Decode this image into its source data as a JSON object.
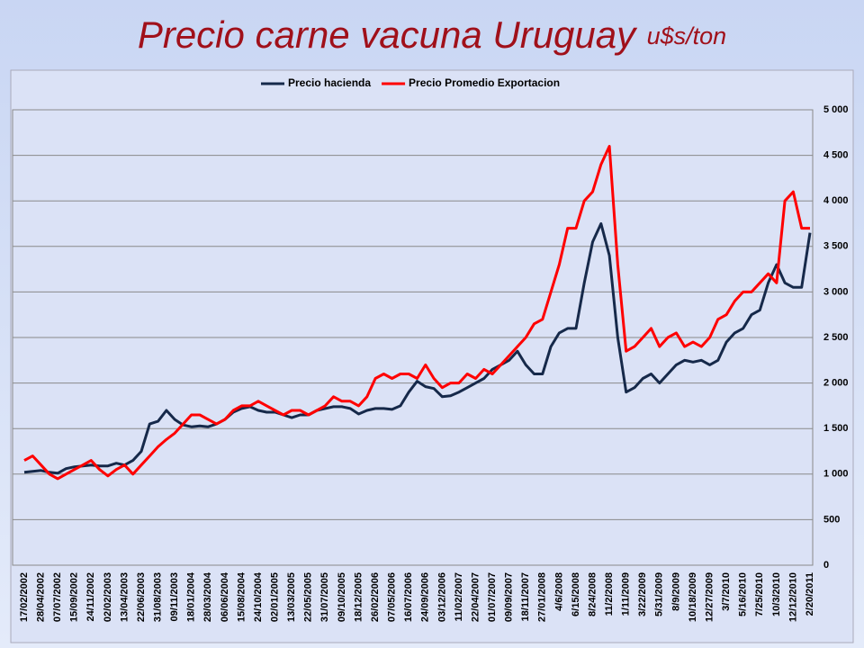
{
  "chart_data": {
    "type": "line",
    "title": "Precio carne vacuna Uruguay",
    "subtitle": "u$s/ton",
    "categories": [
      "17/02/2002",
      null,
      "28/04/2002",
      null,
      "07/07/2002",
      null,
      "15/09/2002",
      null,
      "24/11/2002",
      null,
      "02/02/2003",
      null,
      "13/04/2003",
      null,
      "22/06/2003",
      null,
      "31/08/2003",
      null,
      "09/11/2003",
      null,
      "18/01/2004",
      null,
      "28/03/2004",
      null,
      "06/06/2004",
      null,
      "15/08/2004",
      null,
      "24/10/2004",
      null,
      "02/01/2005",
      null,
      "13/03/2005",
      null,
      "22/05/2005",
      null,
      "31/07/2005",
      null,
      "09/10/2005",
      null,
      "18/12/2005",
      null,
      "26/02/2006",
      null,
      "07/05/2006",
      null,
      "16/07/2006",
      null,
      "24/09/2006",
      null,
      "03/12/2006",
      null,
      "11/02/2007",
      null,
      "22/04/2007",
      null,
      "01/07/2007",
      null,
      "09/09/2007",
      null,
      "18/11/2007",
      null,
      "27/01/2008",
      null,
      "4/6/2008",
      null,
      "6/15/2008",
      null,
      "8/24/2008",
      null,
      "11/2/2008",
      null,
      "1/11/2009",
      null,
      "3/22/2009",
      null,
      "5/31/2009",
      null,
      "8/9/2009",
      null,
      "10/18/2009",
      null,
      "12/27/2009",
      null,
      "3/7/2010",
      null,
      "5/16/2010",
      null,
      "7/25/2010",
      null,
      "10/3/2010",
      null,
      "12/12/2010",
      null,
      "2/20/2011"
    ],
    "series": [
      {
        "name": "Precio hacienda",
        "color": "#16294a",
        "values": [
          1020,
          1030,
          1040,
          1020,
          1010,
          1060,
          1080,
          1090,
          1100,
          1090,
          1090,
          1120,
          1100,
          1150,
          1250,
          1550,
          1580,
          1700,
          1600,
          1540,
          1520,
          1530,
          1520,
          1550,
          1600,
          1680,
          1720,
          1740,
          1700,
          1680,
          1680,
          1650,
          1620,
          1650,
          1650,
          1700,
          1720,
          1740,
          1740,
          1720,
          1660,
          1700,
          1720,
          1720,
          1710,
          1750,
          1900,
          2020,
          1960,
          1940,
          1850,
          1860,
          1900,
          1950,
          2000,
          2050,
          2150,
          2200,
          2250,
          2350,
          2200,
          2100,
          2100,
          2400,
          2550,
          2600,
          2600,
          3100,
          3550,
          3750,
          3400,
          2500,
          1900,
          1950,
          2050,
          2100,
          2000,
          2100,
          2200,
          2250,
          2230,
          2250,
          2200,
          2250,
          2450,
          2550,
          2600,
          2750,
          2800,
          3100,
          3300,
          3100,
          3050,
          3050,
          3650
        ]
      },
      {
        "name": "Precio Promedio Exportacion",
        "color": "#ff0000",
        "values": [
          1150,
          1200,
          1100,
          1000,
          950,
          1000,
          1050,
          1100,
          1150,
          1050,
          980,
          1050,
          1100,
          1000,
          1100,
          1200,
          1300,
          1380,
          1450,
          1550,
          1650,
          1650,
          1600,
          1550,
          1600,
          1700,
          1750,
          1750,
          1800,
          1750,
          1700,
          1650,
          1700,
          1700,
          1650,
          1700,
          1750,
          1850,
          1800,
          1800,
          1750,
          1850,
          2050,
          2100,
          2050,
          2100,
          2100,
          2050,
          2200,
          2050,
          1950,
          2000,
          2000,
          2100,
          2050,
          2150,
          2100,
          2200,
          2300,
          2400,
          2500,
          2650,
          2700,
          3000,
          3300,
          3700,
          3700,
          4000,
          4100,
          4400,
          4600,
          3300,
          2350,
          2400,
          2500,
          2600,
          2400,
          2500,
          2550,
          2400,
          2450,
          2400,
          2500,
          2700,
          2750,
          2900,
          3000,
          3000,
          3100,
          3200,
          3100,
          4000,
          4100,
          3700,
          3700
        ]
      }
    ],
    "ylim": [
      0,
      5000
    ],
    "yticks": [
      0,
      500,
      {
        "value": 1000,
        "label": "1 000"
      },
      {
        "value": 1500,
        "label": "1 500"
      },
      {
        "value": 2000,
        "label": "2 000"
      },
      {
        "value": 2500,
        "label": "2 500"
      },
      {
        "value": 3000,
        "label": "3 000"
      },
      {
        "value": 3500,
        "label": "3 500"
      },
      {
        "value": 4000,
        "label": "4 000"
      },
      {
        "value": 4500,
        "label": "4 500"
      },
      {
        "value": 5000,
        "label": "5 000"
      }
    ],
    "grid": true,
    "legend": "top"
  }
}
